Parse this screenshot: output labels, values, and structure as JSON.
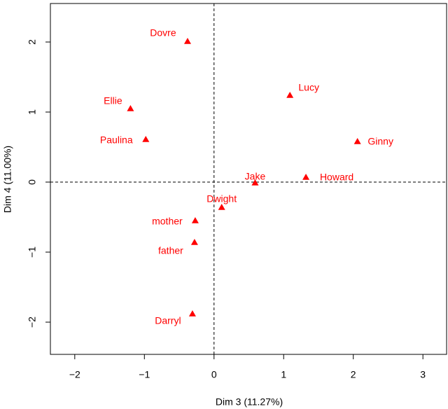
{
  "chart_data": {
    "type": "scatter",
    "xlabel": "Dim 3 (11.27%)",
    "ylabel": "Dim 4 (11.00%)",
    "labels": [
      "Dovre",
      "Lucy",
      "Ellie",
      "Paulina",
      "Ginny",
      "Jake",
      "Howard",
      "Dwight",
      "mother",
      "father",
      "Darryl"
    ],
    "x": [
      -0.38,
      1.09,
      -1.2,
      -0.98,
      2.06,
      0.59,
      1.32,
      0.11,
      -0.27,
      -0.28,
      -0.31
    ],
    "y": [
      2.01,
      1.24,
      1.05,
      0.61,
      0.58,
      -0.01,
      0.07,
      -0.36,
      -0.55,
      -0.86,
      -1.88
    ],
    "color": "#ff0000",
    "marker": "triangle",
    "xlim": [
      -2.35,
      3.34
    ],
    "ylim": [
      -2.46,
      2.55
    ],
    "xticks": [
      {
        "value": -2,
        "label": "−2"
      },
      {
        "value": -1,
        "label": "−1"
      },
      0,
      1,
      2,
      3
    ],
    "yticks": [
      {
        "value": -2,
        "label": "−2"
      },
      {
        "value": -1,
        "label": "−1"
      },
      0,
      1,
      2
    ],
    "reference_lines": {
      "x": 0,
      "y": 0
    }
  }
}
